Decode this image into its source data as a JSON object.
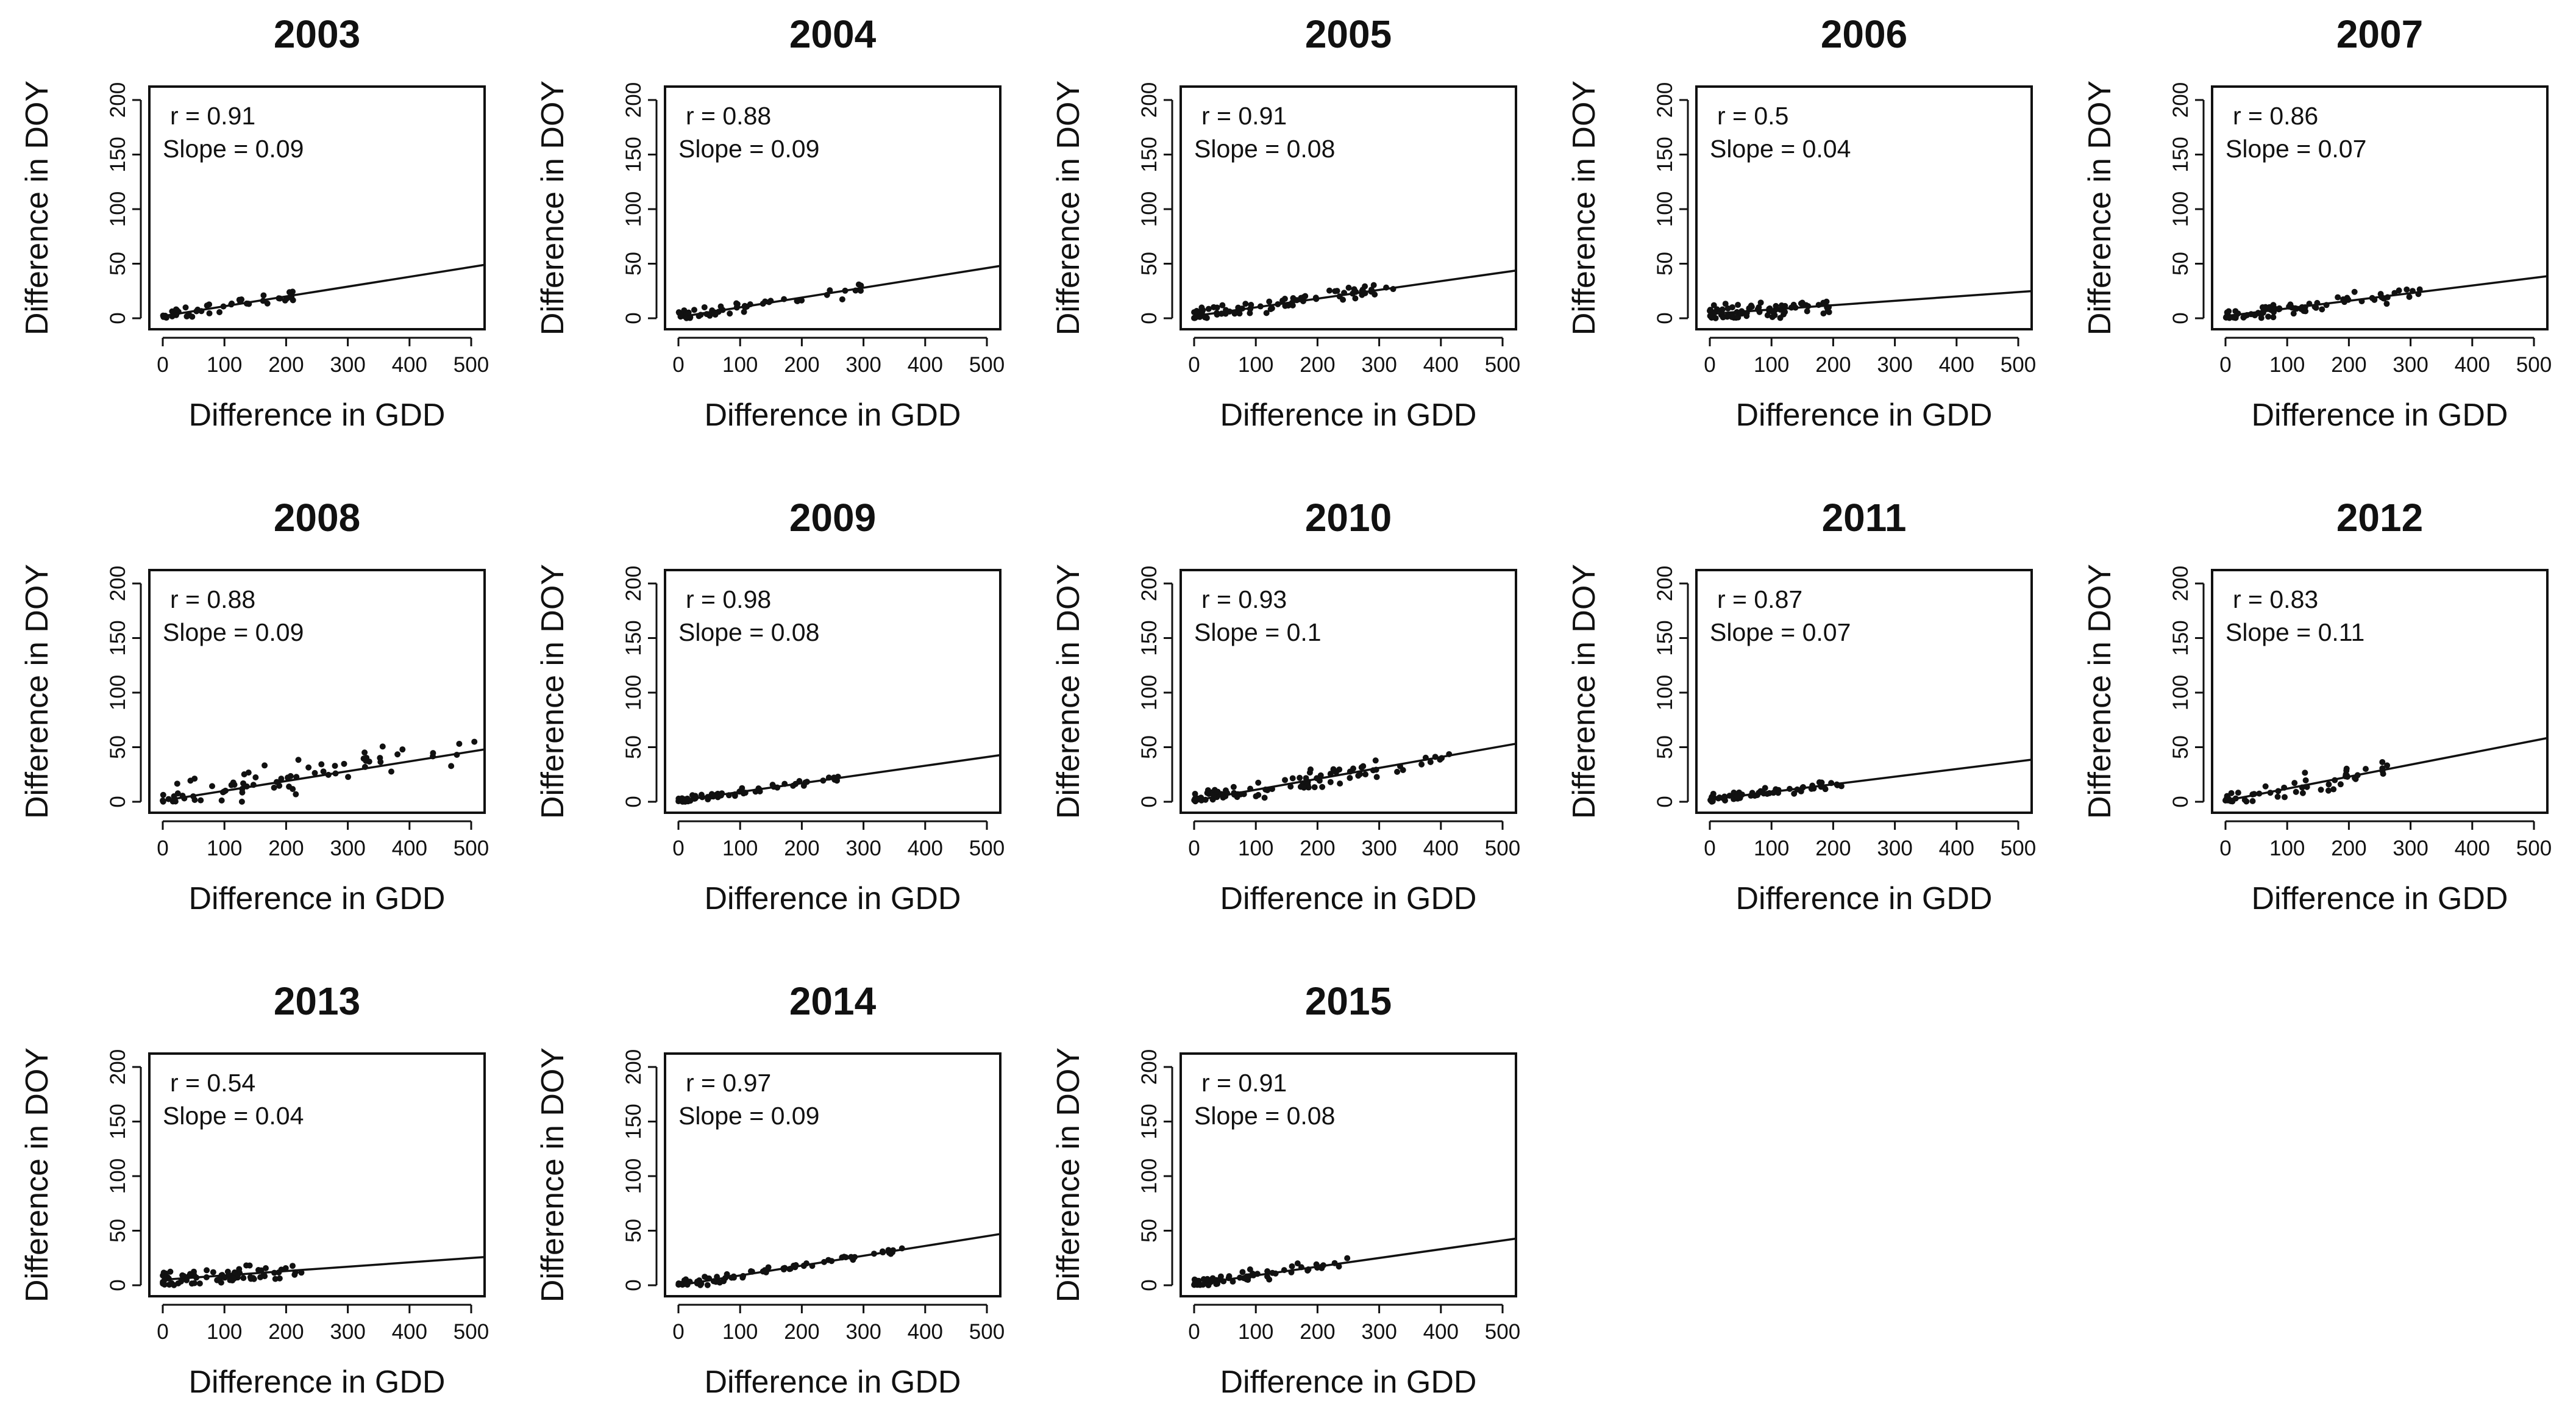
{
  "figure": {
    "rows": 3,
    "columns": 5
  },
  "chart_data": [
    {
      "type": "scatter",
      "title": "2003",
      "xlabel": "Difference in GDD",
      "ylabel": "Difference in DOY",
      "xlim": [
        0,
        500
      ],
      "ylim": [
        0,
        200
      ],
      "xticks": [
        "0",
        "100",
        "200",
        "300",
        "400",
        "500"
      ],
      "yticks": [
        "0",
        "50",
        "100",
        "150",
        "200"
      ],
      "r_text": "r = 0.91",
      "slope_text": "Slope = 0.09",
      "slope": 0.09,
      "intercept": 2,
      "point_cloud": {
        "count": 45,
        "x_max": 230,
        "noise": 3,
        "seed": 3
      }
    },
    {
      "type": "scatter",
      "title": "2004",
      "xlabel": "Difference in GDD",
      "ylabel": "Difference in DOY",
      "xlim": [
        0,
        500
      ],
      "ylim": [
        0,
        200
      ],
      "xticks": [
        "0",
        "100",
        "200",
        "300",
        "400",
        "500"
      ],
      "yticks": [
        "0",
        "50",
        "100",
        "150",
        "200"
      ],
      "r_text": "r = 0.88",
      "slope_text": "Slope = 0.09",
      "slope": 0.09,
      "intercept": 1,
      "point_cloud": {
        "count": 55,
        "x_max": 320,
        "noise": 3,
        "seed": 4
      }
    },
    {
      "type": "scatter",
      "title": "2005",
      "xlabel": "Difference in GDD",
      "ylabel": "Difference in DOY",
      "xlim": [
        0,
        500
      ],
      "ylim": [
        0,
        200
      ],
      "xticks": [
        "0",
        "100",
        "200",
        "300",
        "400",
        "500"
      ],
      "yticks": [
        "0",
        "50",
        "100",
        "150",
        "200"
      ],
      "r_text": "r = 0.91",
      "slope_text": "Slope = 0.08",
      "slope": 0.08,
      "intercept": 2,
      "point_cloud": {
        "count": 80,
        "x_max": 330,
        "noise": 3,
        "seed": 5
      }
    },
    {
      "type": "scatter",
      "title": "2006",
      "xlabel": "Difference in GDD",
      "ylabel": "Difference in DOY",
      "xlim": [
        0,
        500
      ],
      "ylim": [
        0,
        200
      ],
      "xticks": [
        "0",
        "100",
        "200",
        "300",
        "400",
        "500"
      ],
      "yticks": [
        "0",
        "50",
        "100",
        "150",
        "200"
      ],
      "r_text": "r = 0.5",
      "slope_text": "Slope = 0.04",
      "slope": 0.04,
      "intercept": 4,
      "point_cloud": {
        "count": 75,
        "x_max": 200,
        "noise": 4,
        "seed": 6
      }
    },
    {
      "type": "scatter",
      "title": "2007",
      "xlabel": "Difference in GDD",
      "ylabel": "Difference in DOY",
      "xlim": [
        0,
        500
      ],
      "ylim": [
        0,
        200
      ],
      "xticks": [
        "0",
        "100",
        "200",
        "300",
        "400",
        "500"
      ],
      "yticks": [
        "0",
        "50",
        "100",
        "150",
        "200"
      ],
      "r_text": "r = 0.86",
      "slope_text": "Slope = 0.07",
      "slope": 0.07,
      "intercept": 2,
      "point_cloud": {
        "count": 80,
        "x_max": 320,
        "noise": 3,
        "seed": 7
      }
    },
    {
      "type": "scatter",
      "title": "2008",
      "xlabel": "Difference in GDD",
      "ylabel": "Difference in DOY",
      "xlim": [
        0,
        500
      ],
      "ylim": [
        0,
        200
      ],
      "xticks": [
        "0",
        "100",
        "200",
        "300",
        "400",
        "500"
      ],
      "yticks": [
        "0",
        "50",
        "100",
        "150",
        "200"
      ],
      "r_text": "r = 0.88",
      "slope_text": "Slope = 0.09",
      "slope": 0.09,
      "intercept": 1,
      "point_cloud": {
        "count": 75,
        "x_max": 510,
        "noise": 8,
        "seed": 8
      }
    },
    {
      "type": "scatter",
      "title": "2009",
      "xlabel": "Difference in GDD",
      "ylabel": "Difference in DOY",
      "xlim": [
        0,
        500
      ],
      "ylim": [
        0,
        200
      ],
      "xticks": [
        "0",
        "100",
        "200",
        "300",
        "400",
        "500"
      ],
      "yticks": [
        "0",
        "50",
        "100",
        "150",
        "200"
      ],
      "r_text": "r = 0.98",
      "slope_text": "Slope = 0.08",
      "slope": 0.08,
      "intercept": 1,
      "point_cloud": {
        "count": 60,
        "x_max": 260,
        "noise": 1.5,
        "seed": 9
      }
    },
    {
      "type": "scatter",
      "title": "2010",
      "xlabel": "Difference in GDD",
      "ylabel": "Difference in DOY",
      "xlim": [
        0,
        500
      ],
      "ylim": [
        0,
        200
      ],
      "xticks": [
        "0",
        "100",
        "200",
        "300",
        "400",
        "500"
      ],
      "yticks": [
        "0",
        "50",
        "100",
        "150",
        "200"
      ],
      "r_text": "r = 0.93",
      "slope_text": "Slope = 0.1",
      "slope": 0.1,
      "intercept": 1,
      "point_cloud": {
        "count": 90,
        "x_max": 420,
        "noise": 4,
        "seed": 10
      }
    },
    {
      "type": "scatter",
      "title": "2011",
      "xlabel": "Difference in GDD",
      "ylabel": "Difference in DOY",
      "xlim": [
        0,
        500
      ],
      "ylim": [
        0,
        200
      ],
      "xticks": [
        "0",
        "100",
        "200",
        "300",
        "400",
        "500"
      ],
      "yticks": [
        "0",
        "50",
        "100",
        "150",
        "200"
      ],
      "r_text": "r = 0.87",
      "slope_text": "Slope = 0.07",
      "slope": 0.07,
      "intercept": 2,
      "point_cloud": {
        "count": 60,
        "x_max": 220,
        "noise": 2,
        "seed": 11
      }
    },
    {
      "type": "scatter",
      "title": "2012",
      "xlabel": "Difference in GDD",
      "ylabel": "Difference in DOY",
      "xlim": [
        0,
        500
      ],
      "ylim": [
        0,
        200
      ],
      "xticks": [
        "0",
        "100",
        "200",
        "300",
        "400",
        "500"
      ],
      "yticks": [
        "0",
        "50",
        "100",
        "150",
        "200"
      ],
      "r_text": "r = 0.83",
      "slope_text": "Slope = 0.11",
      "slope": 0.11,
      "intercept": 1,
      "point_cloud": {
        "count": 55,
        "x_max": 270,
        "noise": 5,
        "seed": 12
      }
    },
    {
      "type": "scatter",
      "title": "2013",
      "xlabel": "Difference in GDD",
      "ylabel": "Difference in DOY",
      "xlim": [
        0,
        500
      ],
      "ylim": [
        0,
        200
      ],
      "xticks": [
        "0",
        "100",
        "200",
        "300",
        "400",
        "500"
      ],
      "yticks": [
        "0",
        "50",
        "100",
        "150",
        "200"
      ],
      "r_text": "r = 0.54",
      "slope_text": "Slope = 0.04",
      "slope": 0.04,
      "intercept": 5,
      "point_cloud": {
        "count": 75,
        "x_max": 230,
        "noise": 4,
        "seed": 13
      }
    },
    {
      "type": "scatter",
      "title": "2014",
      "xlabel": "Difference in GDD",
      "ylabel": "Difference in DOY",
      "xlim": [
        0,
        500
      ],
      "ylim": [
        0,
        200
      ],
      "xticks": [
        "0",
        "100",
        "200",
        "300",
        "400",
        "500"
      ],
      "yticks": [
        "0",
        "50",
        "100",
        "150",
        "200"
      ],
      "r_text": "r = 0.97",
      "slope_text": "Slope = 0.09",
      "slope": 0.09,
      "intercept": 0,
      "point_cloud": {
        "count": 70,
        "x_max": 370,
        "noise": 2,
        "seed": 14
      }
    },
    {
      "type": "scatter",
      "title": "2015",
      "xlabel": "Difference in GDD",
      "ylabel": "Difference in DOY",
      "xlim": [
        0,
        500
      ],
      "ylim": [
        0,
        200
      ],
      "xticks": [
        "0",
        "100",
        "200",
        "300",
        "400",
        "500"
      ],
      "yticks": [
        "0",
        "50",
        "100",
        "150",
        "200"
      ],
      "r_text": "r = 0.91",
      "slope_text": "Slope = 0.08",
      "slope": 0.08,
      "intercept": 1,
      "point_cloud": {
        "count": 60,
        "x_max": 250,
        "noise": 2.5,
        "seed": 15
      }
    }
  ]
}
